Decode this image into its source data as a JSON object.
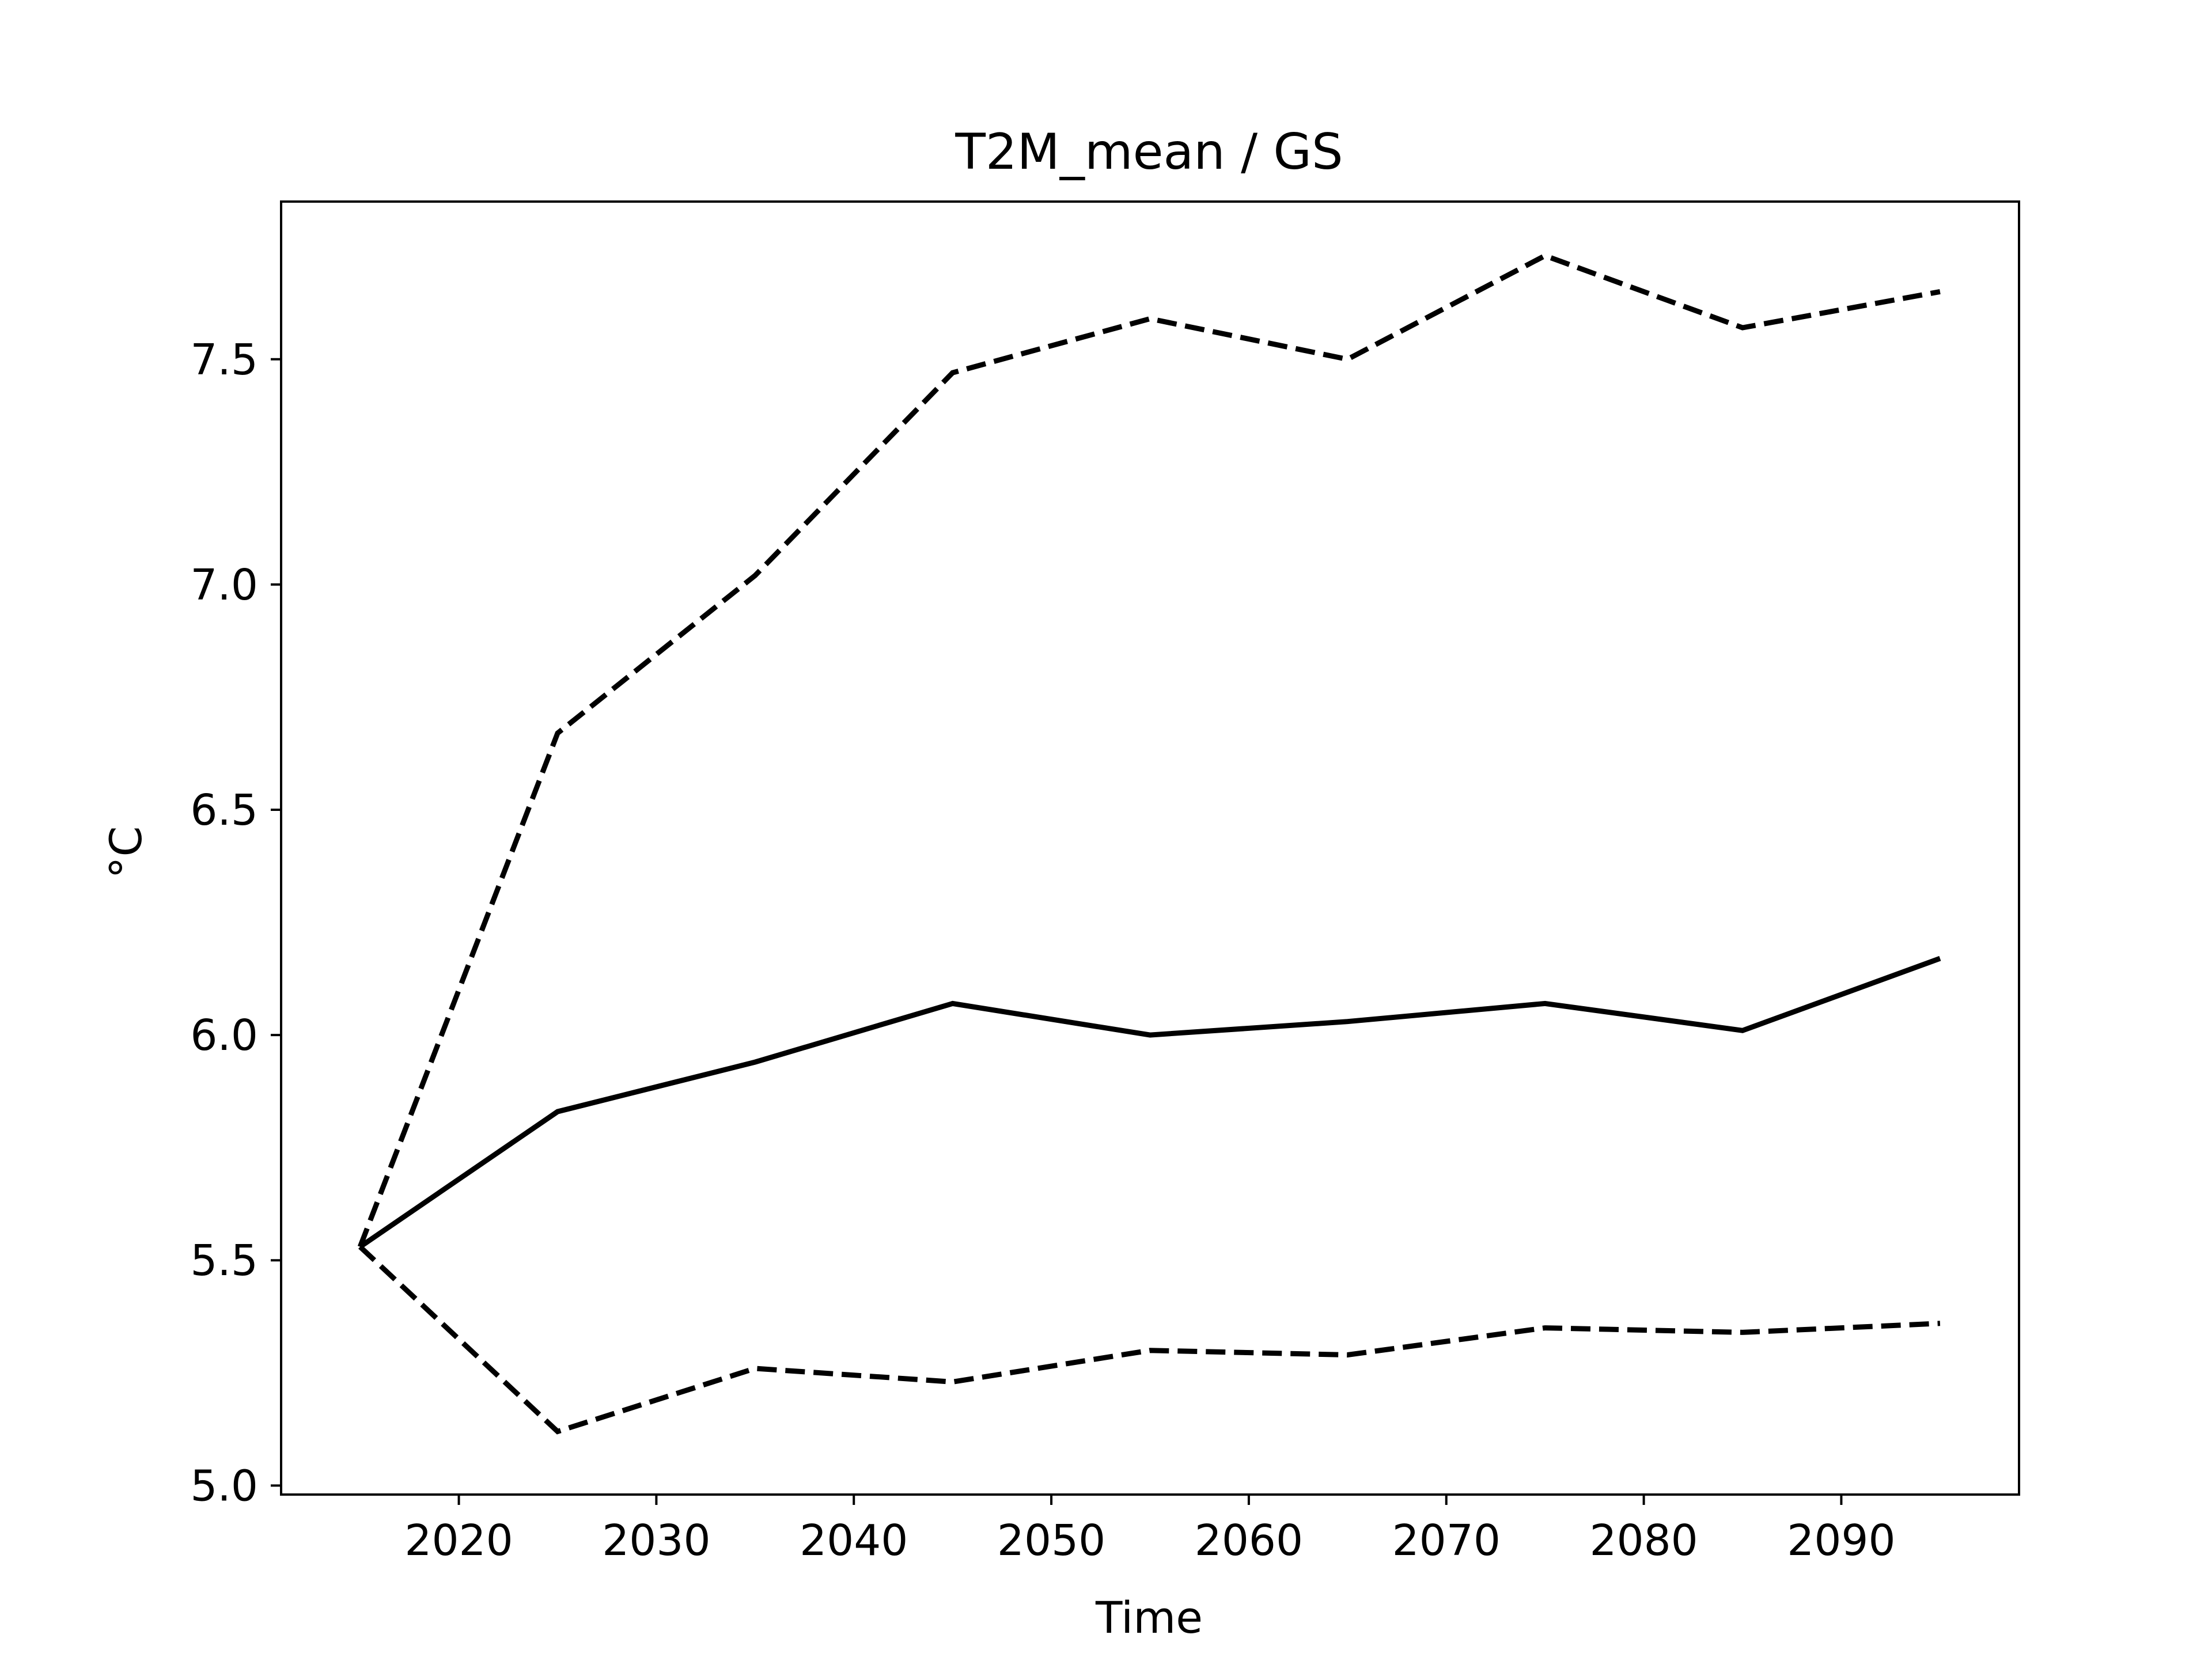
{
  "chart_data": {
    "type": "line",
    "title": "T2M_mean / GS",
    "xlabel": "Time",
    "ylabel": "°C",
    "x": [
      2015,
      2025,
      2035,
      2045,
      2055,
      2065,
      2075,
      2085,
      2095
    ],
    "xlim": [
      2011,
      2099
    ],
    "ylim": [
      4.98,
      7.85
    ],
    "x_ticks": [
      2020,
      2030,
      2040,
      2050,
      2060,
      2070,
      2080,
      2090
    ],
    "x_tick_labels": [
      "2020",
      "2030",
      "2040",
      "2050",
      "2060",
      "2070",
      "2080",
      "2090"
    ],
    "y_ticks": [
      5.0,
      5.5,
      6.0,
      6.5,
      7.0,
      7.5
    ],
    "y_tick_labels": [
      "5.0",
      "5.5",
      "6.0",
      "6.5",
      "7.0",
      "7.5"
    ],
    "grid": false,
    "legend": "none",
    "series": [
      {
        "style": "solid",
        "color": "#000000",
        "values": [
          5.53,
          5.83,
          5.94,
          6.07,
          6.0,
          6.03,
          6.07,
          6.01,
          6.17
        ]
      },
      {
        "style": "dashed",
        "color": "#000000",
        "values": [
          5.53,
          6.67,
          7.02,
          7.47,
          7.59,
          7.5,
          7.73,
          7.57,
          7.65
        ]
      },
      {
        "style": "dashed",
        "color": "#000000",
        "values": [
          5.53,
          5.12,
          5.26,
          5.23,
          5.3,
          5.29,
          5.35,
          5.34,
          5.36
        ]
      }
    ]
  }
}
